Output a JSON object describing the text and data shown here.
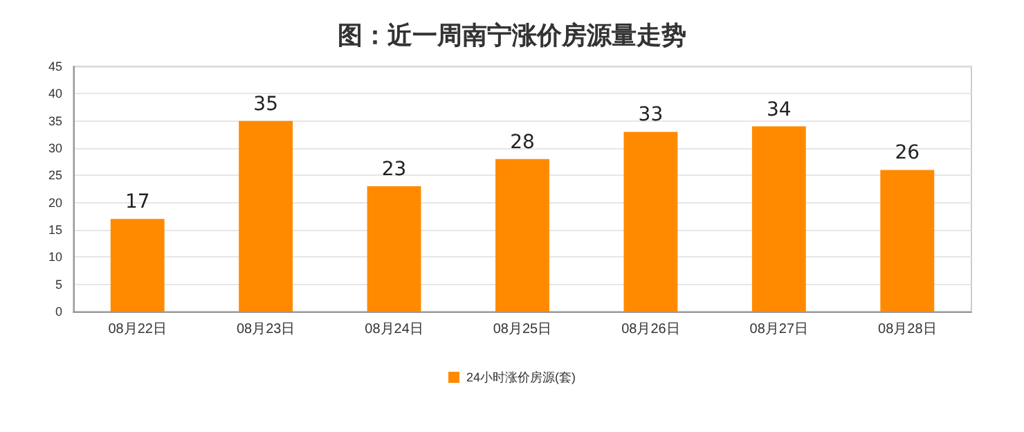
{
  "chart_data": {
    "type": "bar",
    "title": "图：近一周南宁涨价房源量走势",
    "categories": [
      "08月22日",
      "08月23日",
      "08月24日",
      "08月25日",
      "08月26日",
      "08月27日",
      "08月28日"
    ],
    "series": [
      {
        "name": "24小时涨价房源(套)",
        "color": "#ff8a00",
        "values": [
          17,
          35,
          23,
          28,
          33,
          34,
          26
        ]
      }
    ],
    "ylim": [
      0,
      45
    ],
    "yticks": [
      0,
      5,
      10,
      15,
      20,
      25,
      30,
      35,
      40,
      45
    ],
    "grid": "y",
    "legend": "bottom",
    "data_labels": true
  }
}
